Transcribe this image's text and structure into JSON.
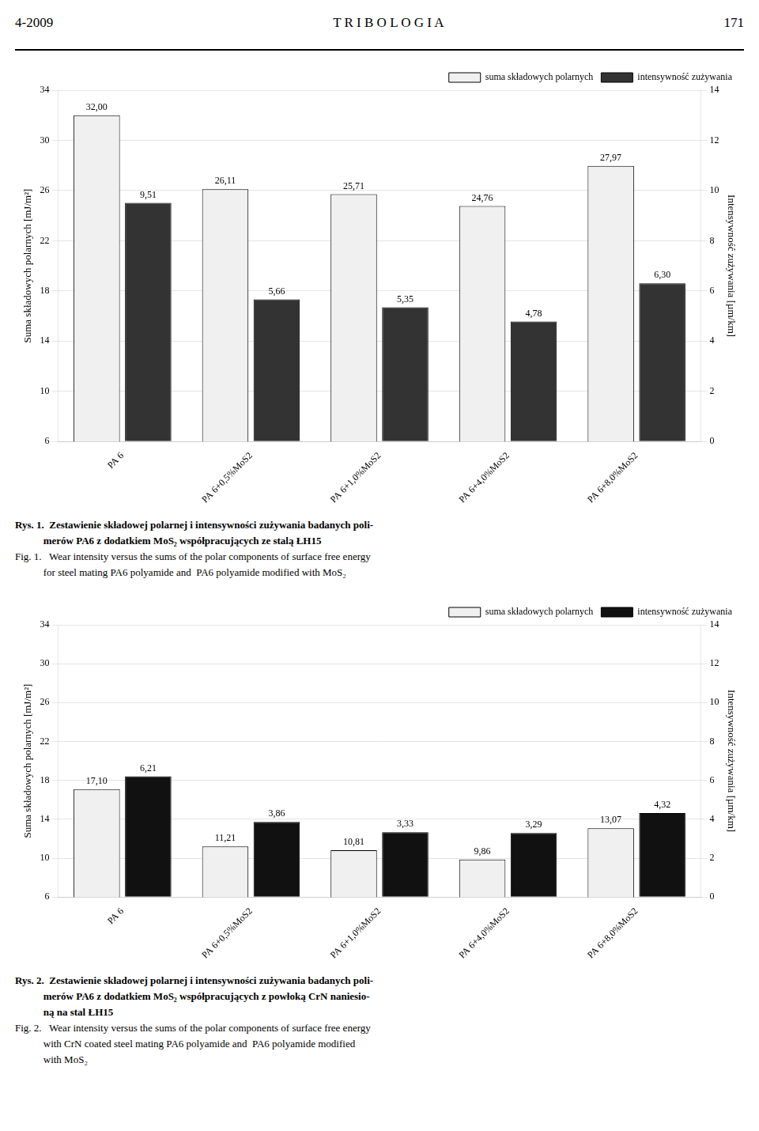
{
  "header": [
    "4-2009",
    "T R I B O L O G I A",
    "171"
  ],
  "chart_data": [
    {
      "type": "bar",
      "categories": [
        "PA 6",
        "PA 6+0,5%MoS2",
        "PA 6+1,0%MoS2",
        "PA 6+4,0%MoS2",
        "PA 6+8,0%MoS2"
      ],
      "series": [
        {
          "name": "suma składowych polarnych",
          "color": "#f0f0f0",
          "values": [
            32.0,
            26.11,
            25.71,
            24.76,
            27.97
          ],
          "value_labels": [
            "32,00",
            "26,11",
            "25,71",
            "24,76",
            "27,97"
          ]
        },
        {
          "name": "intensywność zużywania",
          "color": "#333333",
          "axis": "y2",
          "values": [
            9.51,
            5.66,
            5.35,
            4.78,
            6.3
          ],
          "value_labels": [
            "9,51",
            "5,66",
            "5,35",
            "4,78",
            "6,30"
          ]
        }
      ],
      "ylabel": "Suma składowych polarnych [mJ/m²]",
      "y2label": "Intensywność zużywania [µm/km]",
      "ylim": [
        6,
        34
      ],
      "yticks": [
        6,
        10,
        14,
        18,
        22,
        26,
        30,
        34
      ],
      "y2lim": [
        0,
        14
      ],
      "y2ticks": [
        0,
        2,
        4,
        6,
        8,
        10,
        12,
        14
      ],
      "grid": true,
      "legend": "upper right",
      "data_labels": true,
      "annotations": [
        [
          "Rys. 1.  Zestawienie składowej polarnej i intensywności zużywania badanych poli-",
          "           merów PA6 z dodatkiem MoS₂ współpracujących ze stalą ŁH15"
        ],
        [
          "Fig. 1.   Wear intensity versus the sums of the polar components of surface free energy",
          "           for steel mating PA6 polyamide and  PA6 polyamide modified with MoS₂"
        ]
      ]
    },
    {
      "type": "bar",
      "categories": [
        "PA 6",
        "PA 6+0,5%MoS2",
        "PA 6+1,0%MoS2",
        "PA 6+4,0%MoS2",
        "PA 6+8,0%MoS2"
      ],
      "series": [
        {
          "name": "suma składowych polarnych",
          "color": "#f0f0f0",
          "values": [
            17.1,
            11.21,
            10.81,
            9.86,
            13.07
          ],
          "value_labels": [
            "17,10",
            "11,21",
            "10,81",
            "9,86",
            "13,07"
          ]
        },
        {
          "name": "intensywność zużywania",
          "color": "#111111",
          "axis": "y2",
          "values": [
            6.21,
            3.86,
            3.33,
            3.29,
            4.32
          ],
          "value_labels": [
            "6,21",
            "3,86",
            "3,33",
            "3,29",
            "4,32"
          ]
        }
      ],
      "ylabel": "Suma składowych polarnych [mJ/m²]",
      "y2label": "Intensywność zużywania [µm/km]",
      "ylim": [
        6,
        34
      ],
      "yticks": [
        6,
        10,
        14,
        18,
        22,
        26,
        30,
        34
      ],
      "y2lim": [
        0,
        14
      ],
      "y2ticks": [
        0,
        2,
        4,
        6,
        8,
        10,
        12,
        14
      ],
      "grid": true,
      "legend": "upper right",
      "data_labels": true,
      "annotations": [
        [
          "Rys. 2.  Zestawienie składowej polarnej i intensywności zużywania badanych poli-",
          "           merów PA6 z dodatkiem MoS₂ współpracujących z powłoką CrN naniesio-",
          "           ną na stal ŁH15"
        ],
        [
          "Fig. 2.   Wear intensity versus the sums of the polar components of surface free energy",
          "           with CrN coated steel mating PA6 polyamide and  PA6 polyamide modified",
          "           with MoS₂"
        ]
      ]
    }
  ]
}
